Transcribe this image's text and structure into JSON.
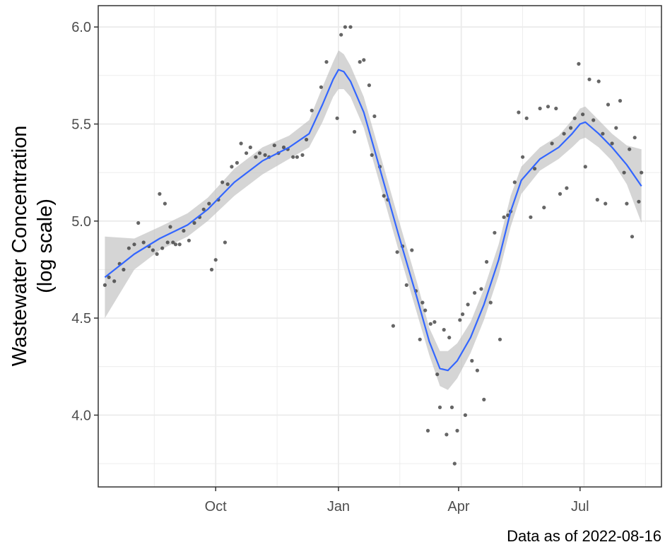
{
  "chart_data": {
    "type": "scatter",
    "title": "",
    "xlabel": "",
    "ylabel_lines": [
      "Wastewater Concentration",
      "(log scale)"
    ],
    "caption": "Data as of 2022-08-16",
    "x_ticks": [
      {
        "label": "Oct",
        "date": "2021-10-01"
      },
      {
        "label": "Jan",
        "date": "2022-01-01"
      },
      {
        "label": "Apr",
        "date": "2022-04-01"
      },
      {
        "label": "Jul",
        "date": "2022-07-01"
      }
    ],
    "y_ticks": [
      {
        "label": "4.0",
        "value": 4.0
      },
      {
        "label": "4.5",
        "value": 4.5
      },
      {
        "label": "5.0",
        "value": 5.0
      },
      {
        "label": "5.5",
        "value": 5.5
      },
      {
        "label": "6.0",
        "value": 6.0
      }
    ],
    "xlim": [
      "2021-07-05",
      "2022-08-31"
    ],
    "ylim": [
      3.63,
      6.11
    ],
    "grid": true,
    "colors": {
      "points": "#333333",
      "trend": "#3366ff",
      "ribbon": "#bfbfbf",
      "grid": "#ebebeb",
      "panel_border": "#333333"
    },
    "points": [
      [
        "2021-07-10",
        4.67
      ],
      [
        "2021-07-13",
        4.71
      ],
      [
        "2021-07-17",
        4.69
      ],
      [
        "2021-07-21",
        4.78
      ],
      [
        "2021-07-24",
        4.75
      ],
      [
        "2021-07-28",
        4.86
      ],
      [
        "2021-08-01",
        4.88
      ],
      [
        "2021-08-04",
        4.99
      ],
      [
        "2021-08-08",
        4.89
      ],
      [
        "2021-08-12",
        4.87
      ],
      [
        "2021-08-15",
        4.85
      ],
      [
        "2021-08-18",
        4.83
      ],
      [
        "2021-08-20",
        5.14
      ],
      [
        "2021-08-22",
        4.86
      ],
      [
        "2021-08-24",
        5.09
      ],
      [
        "2021-08-26",
        4.89
      ],
      [
        "2021-08-28",
        4.97
      ],
      [
        "2021-08-30",
        4.89
      ],
      [
        "2021-09-01",
        4.88
      ],
      [
        "2021-09-04",
        4.88
      ],
      [
        "2021-09-07",
        4.95
      ],
      [
        "2021-09-11",
        4.9
      ],
      [
        "2021-09-15",
        4.99
      ],
      [
        "2021-09-19",
        5.02
      ],
      [
        "2021-09-22",
        5.06
      ],
      [
        "2021-09-26",
        5.09
      ],
      [
        "2021-09-28",
        4.75
      ],
      [
        "2021-10-01",
        4.8
      ],
      [
        "2021-10-03",
        5.11
      ],
      [
        "2021-10-06",
        5.2
      ],
      [
        "2021-10-08",
        4.89
      ],
      [
        "2021-10-10",
        5.19
      ],
      [
        "2021-10-13",
        5.28
      ],
      [
        "2021-10-17",
        5.3
      ],
      [
        "2021-10-20",
        5.4
      ],
      [
        "2021-10-24",
        5.35
      ],
      [
        "2021-10-27",
        5.38
      ],
      [
        "2021-10-31",
        5.33
      ],
      [
        "2021-11-03",
        5.35
      ],
      [
        "2021-11-07",
        5.34
      ],
      [
        "2021-11-10",
        5.33
      ],
      [
        "2021-11-14",
        5.39
      ],
      [
        "2021-11-17",
        5.35
      ],
      [
        "2021-11-21",
        5.38
      ],
      [
        "2021-11-24",
        5.37
      ],
      [
        "2021-11-28",
        5.33
      ],
      [
        "2021-12-01",
        5.33
      ],
      [
        "2021-12-05",
        5.34
      ],
      [
        "2021-12-08",
        5.42
      ],
      [
        "2021-12-12",
        5.57
      ],
      [
        "2021-12-19",
        5.69
      ],
      [
        "2021-12-23",
        5.82
      ],
      [
        "2021-12-31",
        5.53
      ],
      [
        "2022-01-03",
        5.96
      ],
      [
        "2022-01-06",
        6.0
      ],
      [
        "2022-01-10",
        6.0
      ],
      [
        "2022-01-13",
        5.46
      ],
      [
        "2022-01-17",
        5.82
      ],
      [
        "2022-01-20",
        5.83
      ],
      [
        "2022-01-24",
        5.7
      ],
      [
        "2022-01-26",
        5.34
      ],
      [
        "2022-01-28",
        5.54
      ],
      [
        "2022-02-01",
        5.28
      ],
      [
        "2022-02-04",
        5.13
      ],
      [
        "2022-02-07",
        5.11
      ],
      [
        "2022-02-11",
        4.46
      ],
      [
        "2022-02-14",
        4.84
      ],
      [
        "2022-02-18",
        4.87
      ],
      [
        "2022-02-21",
        4.67
      ],
      [
        "2022-02-25",
        4.85
      ],
      [
        "2022-02-28",
        4.64
      ],
      [
        "2022-03-03",
        4.39
      ],
      [
        "2022-03-05",
        4.58
      ],
      [
        "2022-03-07",
        4.54
      ],
      [
        "2022-03-09",
        3.92
      ],
      [
        "2022-03-11",
        4.47
      ],
      [
        "2022-03-14",
        4.48
      ],
      [
        "2022-03-16",
        4.21
      ],
      [
        "2022-03-18",
        4.04
      ],
      [
        "2022-03-21",
        4.44
      ],
      [
        "2022-03-23",
        3.9
      ],
      [
        "2022-03-25",
        4.4
      ],
      [
        "2022-03-27",
        4.04
      ],
      [
        "2022-03-29",
        3.75
      ],
      [
        "2022-03-31",
        3.92
      ],
      [
        "2022-04-02",
        4.49
      ],
      [
        "2022-04-04",
        4.52
      ],
      [
        "2022-04-06",
        4.0
      ],
      [
        "2022-04-08",
        4.57
      ],
      [
        "2022-04-11",
        4.28
      ],
      [
        "2022-04-13",
        4.63
      ],
      [
        "2022-04-15",
        4.23
      ],
      [
        "2022-04-18",
        4.65
      ],
      [
        "2022-04-20",
        4.08
      ],
      [
        "2022-04-22",
        4.79
      ],
      [
        "2022-04-25",
        4.58
      ],
      [
        "2022-04-28",
        4.94
      ],
      [
        "2022-05-02",
        4.39
      ],
      [
        "2022-05-05",
        5.02
      ],
      [
        "2022-05-08",
        5.03
      ],
      [
        "2022-05-10",
        5.05
      ],
      [
        "2022-05-13",
        5.2
      ],
      [
        "2022-05-16",
        5.56
      ],
      [
        "2022-05-19",
        5.33
      ],
      [
        "2022-05-22",
        5.53
      ],
      [
        "2022-05-25",
        5.02
      ],
      [
        "2022-05-28",
        5.27
      ],
      [
        "2022-06-01",
        5.58
      ],
      [
        "2022-06-04",
        5.07
      ],
      [
        "2022-06-07",
        5.59
      ],
      [
        "2022-06-10",
        5.4
      ],
      [
        "2022-06-13",
        5.58
      ],
      [
        "2022-06-16",
        5.14
      ],
      [
        "2022-06-19",
        5.45
      ],
      [
        "2022-06-21",
        5.17
      ],
      [
        "2022-06-24",
        5.48
      ],
      [
        "2022-06-27",
        5.53
      ],
      [
        "2022-06-30",
        5.81
      ],
      [
        "2022-07-03",
        5.55
      ],
      [
        "2022-07-05",
        5.28
      ],
      [
        "2022-07-08",
        5.73
      ],
      [
        "2022-07-11",
        5.52
      ],
      [
        "2022-07-14",
        5.11
      ],
      [
        "2022-07-15",
        5.72
      ],
      [
        "2022-07-18",
        5.45
      ],
      [
        "2022-07-20",
        5.09
      ],
      [
        "2022-07-22",
        5.6
      ],
      [
        "2022-07-25",
        5.4
      ],
      [
        "2022-07-28",
        5.48
      ],
      [
        "2022-07-31",
        5.62
      ],
      [
        "2022-08-03",
        5.25
      ],
      [
        "2022-08-05",
        5.09
      ],
      [
        "2022-08-07",
        5.37
      ],
      [
        "2022-08-09",
        4.92
      ],
      [
        "2022-08-11",
        5.43
      ],
      [
        "2022-08-14",
        5.1
      ],
      [
        "2022-08-16",
        5.25
      ]
    ],
    "trend": [
      [
        "2021-07-10",
        4.71
      ],
      [
        "2021-08-01",
        4.83
      ],
      [
        "2021-08-20",
        4.91
      ],
      [
        "2021-09-10",
        4.98
      ],
      [
        "2021-09-25",
        5.06
      ],
      [
        "2021-10-15",
        5.2
      ],
      [
        "2021-11-05",
        5.31
      ],
      [
        "2021-11-25",
        5.38
      ],
      [
        "2021-12-10",
        5.45
      ],
      [
        "2021-12-20",
        5.6
      ],
      [
        "2021-12-28",
        5.73
      ],
      [
        "2022-01-01",
        5.78
      ],
      [
        "2022-01-05",
        5.77
      ],
      [
        "2022-01-10",
        5.72
      ],
      [
        "2022-01-20",
        5.56
      ],
      [
        "2022-02-01",
        5.27
      ],
      [
        "2022-02-15",
        4.93
      ],
      [
        "2022-03-01",
        4.6
      ],
      [
        "2022-03-10",
        4.38
      ],
      [
        "2022-03-18",
        4.24
      ],
      [
        "2022-03-24",
        4.23
      ],
      [
        "2022-03-31",
        4.28
      ],
      [
        "2022-04-10",
        4.4
      ],
      [
        "2022-04-20",
        4.57
      ],
      [
        "2022-05-01",
        4.8
      ],
      [
        "2022-05-10",
        5.05
      ],
      [
        "2022-05-18",
        5.21
      ],
      [
        "2022-06-01",
        5.32
      ],
      [
        "2022-06-15",
        5.38
      ],
      [
        "2022-06-25",
        5.45
      ],
      [
        "2022-07-01",
        5.5
      ],
      [
        "2022-07-05",
        5.51
      ],
      [
        "2022-07-15",
        5.45
      ],
      [
        "2022-07-25",
        5.38
      ],
      [
        "2022-08-05",
        5.29
      ],
      [
        "2022-08-16",
        5.18
      ]
    ],
    "ribbon_halfwidth": [
      0.21,
      0.08,
      0.06,
      0.06,
      0.06,
      0.07,
      0.07,
      0.06,
      0.07,
      0.09,
      0.09,
      0.1,
      0.09,
      0.08,
      0.08,
      0.08,
      0.08,
      0.08,
      0.07,
      0.09,
      0.1,
      0.09,
      0.08,
      0.08,
      0.08,
      0.08,
      0.07,
      0.06,
      0.06,
      0.07,
      0.08,
      0.08,
      0.07,
      0.07,
      0.1,
      0.19
    ]
  }
}
